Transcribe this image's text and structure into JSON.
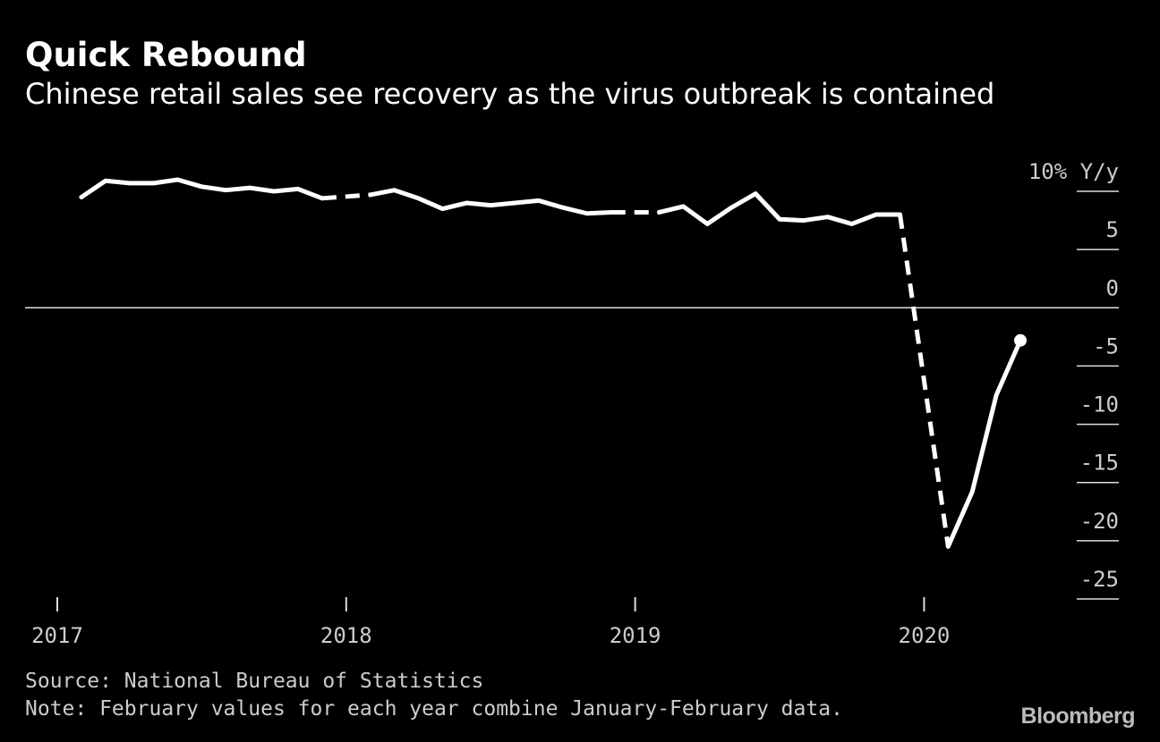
{
  "header": {
    "title": "Quick Rebound",
    "subtitle": "Chinese retail sales see recovery as the virus outbreak is contained"
  },
  "footer": {
    "source": "Source: National Bureau of Statistics",
    "note": "Note: February values for each year combine January-February data.",
    "brand": "Bloomberg"
  },
  "colors": {
    "background": "#000000",
    "line": "#ffffff",
    "text": "#ffffff",
    "muted_text": "#cccccc"
  },
  "chart_data": {
    "type": "line",
    "title": "Quick Rebound",
    "subtitle": "Chinese retail sales see recovery as the virus outbreak is contained",
    "ylabel": "10% Y/y",
    "ylim": [
      -25,
      10
    ],
    "yticks": [
      {
        "value": 10,
        "label": "10% Y/y"
      },
      {
        "value": 5,
        "label": "5"
      },
      {
        "value": 0,
        "label": "0"
      },
      {
        "value": -5,
        "label": "-5"
      },
      {
        "value": -10,
        "label": "-10"
      },
      {
        "value": -15,
        "label": "-15"
      },
      {
        "value": -20,
        "label": "-20"
      },
      {
        "value": -25,
        "label": "-25"
      }
    ],
    "xlim": [
      2017.0,
      2020.42
    ],
    "xticks": [
      {
        "value": 2017.0,
        "label": "2017"
      },
      {
        "value": 2018.0,
        "label": "2018"
      },
      {
        "value": 2019.0,
        "label": "2019"
      },
      {
        "value": 2020.0,
        "label": "2020"
      }
    ],
    "zero_line": true,
    "dashed_note": "Dashed segments connect December to the combined January-February value",
    "series": [
      {
        "name": "Retail sales, Y/y %",
        "points": [
          {
            "x": "2017-02",
            "y": 9.5
          },
          {
            "x": "2017-03",
            "y": 10.9
          },
          {
            "x": "2017-04",
            "y": 10.7
          },
          {
            "x": "2017-05",
            "y": 10.7
          },
          {
            "x": "2017-06",
            "y": 11.0
          },
          {
            "x": "2017-07",
            "y": 10.4
          },
          {
            "x": "2017-08",
            "y": 10.1
          },
          {
            "x": "2017-09",
            "y": 10.3
          },
          {
            "x": "2017-10",
            "y": 10.0
          },
          {
            "x": "2017-11",
            "y": 10.2
          },
          {
            "x": "2017-12",
            "y": 9.4
          },
          {
            "x": "2018-02",
            "y": 9.7
          },
          {
            "x": "2018-03",
            "y": 10.1
          },
          {
            "x": "2018-04",
            "y": 9.4
          },
          {
            "x": "2018-05",
            "y": 8.5
          },
          {
            "x": "2018-06",
            "y": 9.0
          },
          {
            "x": "2018-07",
            "y": 8.8
          },
          {
            "x": "2018-08",
            "y": 9.0
          },
          {
            "x": "2018-09",
            "y": 9.2
          },
          {
            "x": "2018-10",
            "y": 8.6
          },
          {
            "x": "2018-11",
            "y": 8.1
          },
          {
            "x": "2018-12",
            "y": 8.2
          },
          {
            "x": "2019-02",
            "y": 8.2
          },
          {
            "x": "2019-03",
            "y": 8.7
          },
          {
            "x": "2019-04",
            "y": 7.2
          },
          {
            "x": "2019-05",
            "y": 8.6
          },
          {
            "x": "2019-06",
            "y": 9.8
          },
          {
            "x": "2019-07",
            "y": 7.6
          },
          {
            "x": "2019-08",
            "y": 7.5
          },
          {
            "x": "2019-09",
            "y": 7.8
          },
          {
            "x": "2019-10",
            "y": 7.2
          },
          {
            "x": "2019-11",
            "y": 8.0
          },
          {
            "x": "2019-12",
            "y": 8.0
          },
          {
            "x": "2020-02",
            "y": -20.5
          },
          {
            "x": "2020-03",
            "y": -15.8
          },
          {
            "x": "2020-04",
            "y": -7.5
          },
          {
            "x": "2020-05",
            "y": -2.8
          }
        ]
      }
    ]
  }
}
